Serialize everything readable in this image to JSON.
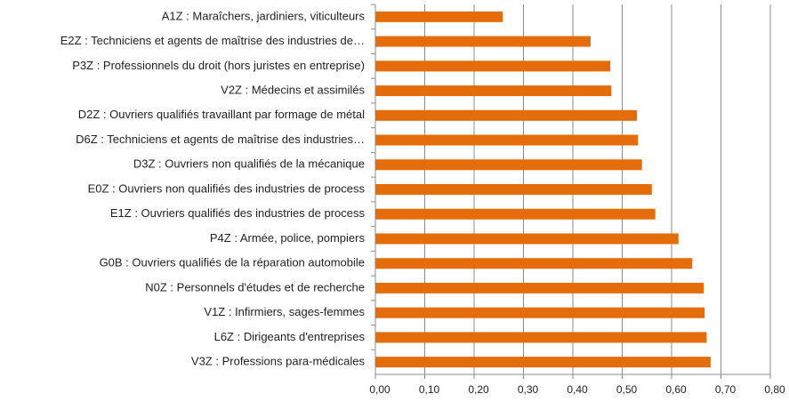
{
  "chart_data": {
    "type": "bar",
    "orientation": "horizontal",
    "categories": [
      "A1Z : Maraîchers, jardiniers, viticulteurs",
      "E2Z : Techniciens et agents de maîtrise des industries de…",
      "P3Z : Professionnels du droit (hors juristes en entreprise)",
      "V2Z : Médecins et assimilés",
      "D2Z : Ouvriers qualifiés travaillant par formage de métal",
      "D6Z : Techniciens et agents de maîtrise des industries…",
      "D3Z : Ouvriers non qualifiés de la mécanique",
      "E0Z : Ouvriers non qualifiés des industries de process",
      "E1Z : Ouvriers qualifiés des industries de process",
      "P4Z : Armée, police, pompiers",
      "G0B : Ouvriers qualifiés de la réparation automobile",
      "N0Z : Personnels d'études et de recherche",
      "V1Z : Infirmiers, sages-femmes",
      "L6Z : Dirigeants d'entreprises",
      "V3Z : Professions para-médicales"
    ],
    "values": [
      0.258,
      0.436,
      0.476,
      0.478,
      0.53,
      0.532,
      0.54,
      0.56,
      0.567,
      0.614,
      0.642,
      0.665,
      0.667,
      0.671,
      0.679
    ],
    "color": "#e46c0a",
    "xlim": [
      0,
      0.8
    ],
    "xticks": [
      {
        "value": 0,
        "label": "0,00"
      },
      {
        "value": 0.1,
        "label": "0,10"
      },
      {
        "value": 0.2,
        "label": "0,20"
      },
      {
        "value": 0.3,
        "label": "0,30"
      },
      {
        "value": 0.4,
        "label": "0,40"
      },
      {
        "value": 0.5,
        "label": "0,50"
      },
      {
        "value": 0.6,
        "label": "0,60"
      },
      {
        "value": 0.7,
        "label": "0,70"
      },
      {
        "value": 0.8,
        "label": "0,80"
      }
    ],
    "grid": true
  }
}
